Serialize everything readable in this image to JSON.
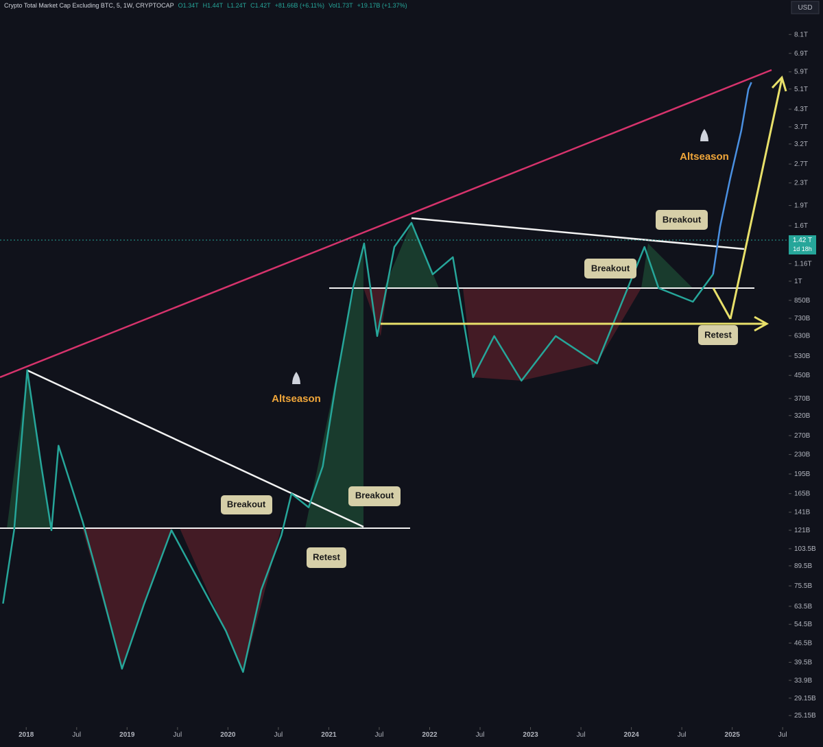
{
  "header": {
    "title": "Crypto Total Market Cap Excluding BTC, 5, 1W, CRYPTOCAP",
    "ohlc": [
      "O1.34T",
      "H1.44T",
      "L1.24T",
      "C1.42T",
      "+81.66B (+6.11%)"
    ],
    "volume": "Vol1.73T",
    "volume_change": "+19.17B (+1.37%)"
  },
  "currency": "USD",
  "price_badge": {
    "price": "1.42 T",
    "countdown": "1d 18h"
  },
  "chart": {
    "log_scale": true,
    "ylim": [
      22.8,
      10850
    ],
    "xlim": [
      2017.74,
      2025.56
    ],
    "yticks": [
      {
        "value": 8100,
        "label": "8.1T"
      },
      {
        "value": 6900,
        "label": "6.9T"
      },
      {
        "value": 5900,
        "label": "5.9T"
      },
      {
        "value": 5100,
        "label": "5.1T"
      },
      {
        "value": 4300,
        "label": "4.3T"
      },
      {
        "value": 3700,
        "label": "3.7T"
      },
      {
        "value": 3200,
        "label": "3.2T"
      },
      {
        "value": 2700,
        "label": "2.7T"
      },
      {
        "value": 2300,
        "label": "2.3T"
      },
      {
        "value": 1900,
        "label": "1.9T"
      },
      {
        "value": 1600,
        "label": "1.6T"
      },
      {
        "value": 1160,
        "label": "1.16T"
      },
      {
        "value": 1000,
        "label": "1T"
      },
      {
        "value": 850,
        "label": "850B"
      },
      {
        "value": 730,
        "label": "730B"
      },
      {
        "value": 630,
        "label": "630B"
      },
      {
        "value": 530,
        "label": "530B"
      },
      {
        "value": 450,
        "label": "450B"
      },
      {
        "value": 370,
        "label": "370B"
      },
      {
        "value": 320,
        "label": "320B"
      },
      {
        "value": 270,
        "label": "270B"
      },
      {
        "value": 230,
        "label": "230B"
      },
      {
        "value": 195,
        "label": "195B"
      },
      {
        "value": 165,
        "label": "165B"
      },
      {
        "value": 141,
        "label": "141B"
      },
      {
        "value": 121,
        "label": "121B"
      },
      {
        "value": 103.5,
        "label": "103.5B"
      },
      {
        "value": 89.5,
        "label": "89.5B"
      },
      {
        "value": 75.5,
        "label": "75.5B"
      },
      {
        "value": 63.5,
        "label": "63.5B"
      },
      {
        "value": 54.5,
        "label": "54.5B"
      },
      {
        "value": 46.5,
        "label": "46.5B"
      },
      {
        "value": 39.5,
        "label": "39.5B"
      },
      {
        "value": 33.9,
        "label": "33.9B"
      },
      {
        "value": 29.15,
        "label": "29.15B"
      },
      {
        "value": 25.15,
        "label": "25.15B"
      }
    ],
    "xticks": [
      {
        "value": 2018,
        "label": "2018"
      },
      {
        "value": 2018.5,
        "label": "Jul"
      },
      {
        "value": 2019,
        "label": "2019"
      },
      {
        "value": 2019.5,
        "label": "Jul"
      },
      {
        "value": 2020,
        "label": "2020"
      },
      {
        "value": 2020.5,
        "label": "Jul"
      },
      {
        "value": 2021,
        "label": "2021"
      },
      {
        "value": 2021.5,
        "label": "Jul"
      },
      {
        "value": 2022,
        "label": "2022"
      },
      {
        "value": 2022.5,
        "label": "Jul"
      },
      {
        "value": 2023,
        "label": "2023"
      },
      {
        "value": 2023.5,
        "label": "Jul"
      },
      {
        "value": 2024,
        "label": "2024"
      },
      {
        "value": 2024.5,
        "label": "Jul"
      },
      {
        "value": 2025,
        "label": "2025"
      },
      {
        "value": 2025.5,
        "label": "Jul"
      }
    ],
    "price": {
      "color": "#26a69a",
      "x": [
        2017.77,
        2017.88,
        2018.01,
        2018.15,
        2018.25,
        2018.32,
        2018.56,
        2018.69,
        2018.95,
        2019.17,
        2019.44,
        2019.98,
        2020.15,
        2020.33,
        2020.53,
        2020.63,
        2020.8,
        2020.94,
        2021.07,
        2021.24,
        2021.35,
        2021.48,
        2021.65,
        2021.82,
        2022.03,
        2022.23,
        2022.43,
        2022.64,
        2022.91,
        2023.25,
        2023.66,
        2024.13,
        2024.27,
        2024.61,
        2024.81
      ],
      "values": [
        65,
        121,
        470,
        208,
        121,
        248,
        130,
        87,
        37.4,
        65,
        121,
        51.5,
        36.4,
        73,
        116,
        165,
        147,
        208,
        418,
        943,
        1377,
        628,
        1337,
        1640,
        1060,
        1226,
        443,
        628,
        430,
        628,
        498,
        1337,
        943,
        840,
        1060
      ]
    },
    "projection": {
      "color": "#4a90e2",
      "x": [
        2024.81,
        2024.88,
        2024.98,
        2025.09,
        2025.16,
        2025.19
      ],
      "values": [
        1060,
        1590,
        2390,
        3590,
        5090,
        5400
      ]
    }
  },
  "annotations": {
    "breakout_1": "Breakout",
    "breakout_2": "Breakout",
    "retest_1": "Retest",
    "breakout_3": "Breakout",
    "breakout_4": "Breakout",
    "retest_2": "Retest",
    "altseason_1": "Altseason",
    "altseason_2": "Altseason"
  }
}
